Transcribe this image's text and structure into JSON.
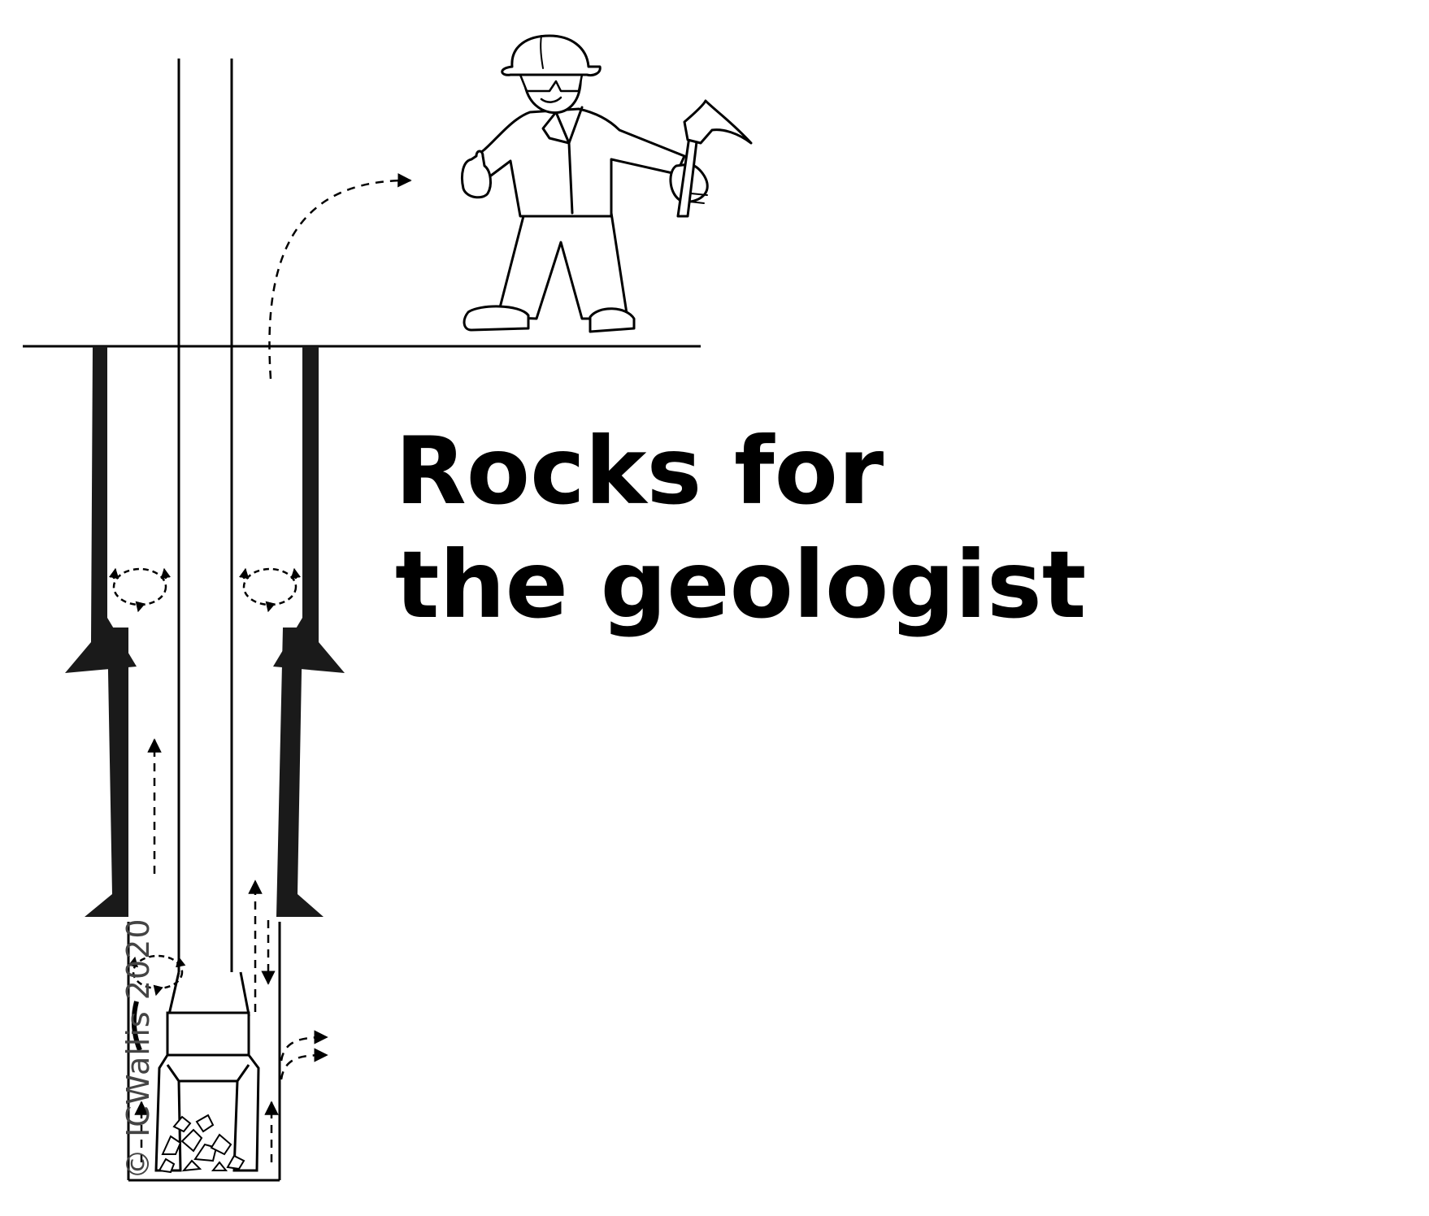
{
  "title": {
    "line1": "Rocks for",
    "line2": "the geologist"
  },
  "copyright": "© ICWallis 2020",
  "colors": {
    "ink": "#000000",
    "casing": "#1a1a1a",
    "copyright": "#444444",
    "background": "#ffffff"
  },
  "icons": [
    "geologist-figure",
    "rock-hammer",
    "hard-hat",
    "drill-bit",
    "drill-cuttings",
    "flow-arrows",
    "circulation-eddies"
  ]
}
